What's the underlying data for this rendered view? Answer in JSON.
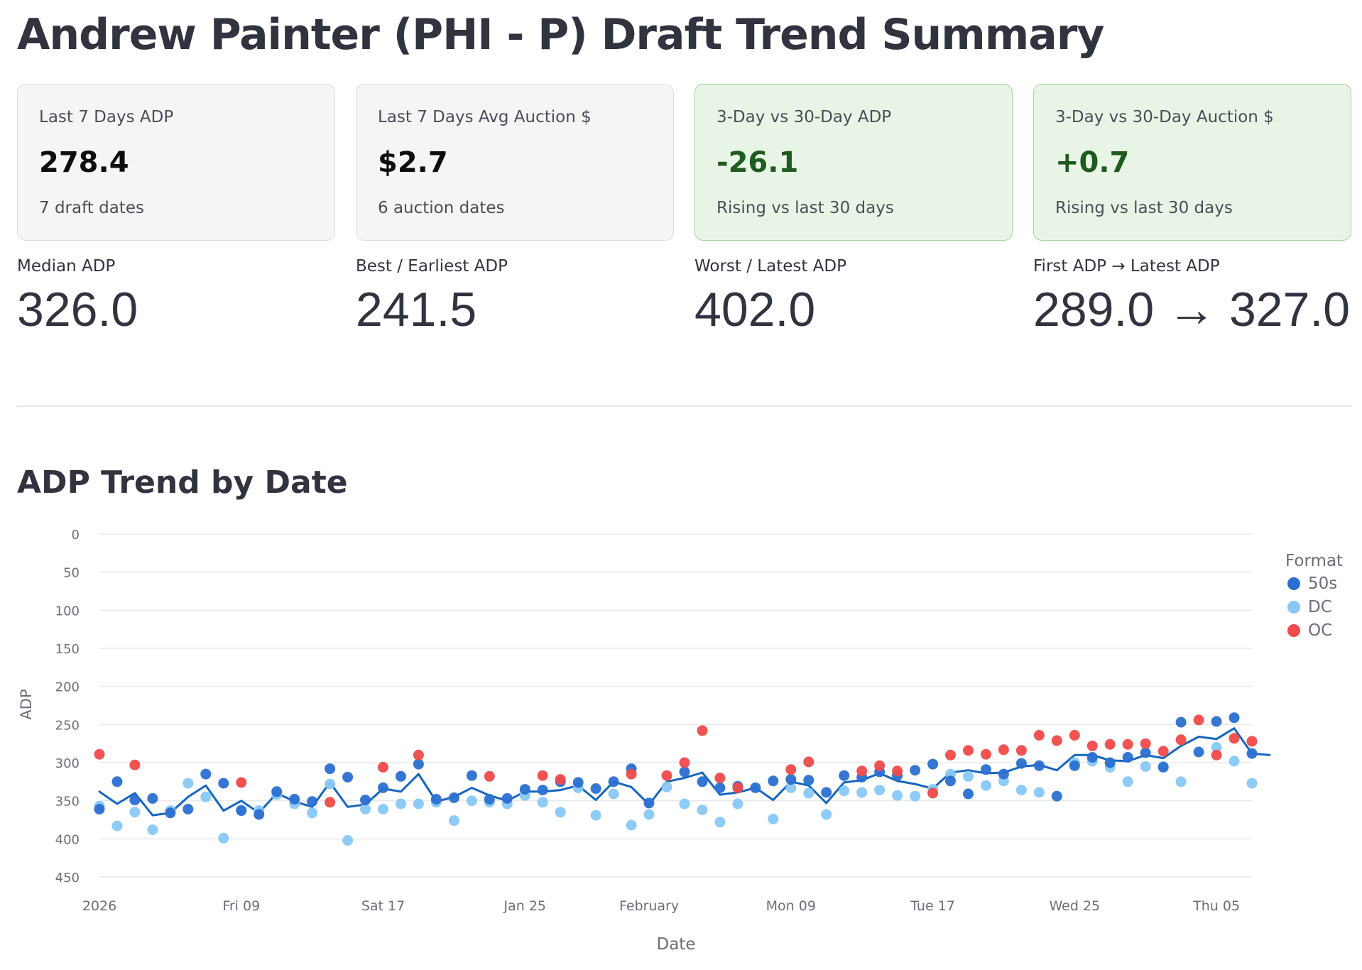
{
  "page": {
    "title": "Andrew Painter (PHI - P) Draft Trend Summary"
  },
  "cards": [
    {
      "label": "Last 7 Days ADP",
      "value": "278.4",
      "sub": "7 draft dates",
      "status": "neutral"
    },
    {
      "label": "Last 7 Days Avg Auction $",
      "value": "$2.7",
      "sub": "6 auction dates",
      "status": "neutral"
    },
    {
      "label": "3-Day vs 30-Day ADP",
      "value": "-26.1",
      "sub": "Rising vs last 30 days",
      "status": "positive"
    },
    {
      "label": "3-Day vs 30-Day Auction $",
      "value": "+0.7",
      "sub": "Rising vs last 30 days",
      "status": "positive"
    }
  ],
  "metrics": [
    {
      "label": "Median ADP",
      "value": "326.0"
    },
    {
      "label": "Best / Earliest ADP",
      "value": "241.5"
    },
    {
      "label": "Worst / Latest ADP",
      "value": "402.0"
    },
    {
      "label": "First ADP → Latest ADP",
      "value": "289.0 → 327.0"
    }
  ],
  "colors": {
    "card_positive_bg": "#e8f5e6",
    "card_positive_border": "#9fd49a",
    "positive_text": "#1f5a1f",
    "trend_line": "#1565c0"
  },
  "chart_data": {
    "type": "scatter",
    "title": "ADP Trend by Date",
    "xlabel": "Date",
    "ylabel": "ADP",
    "y_reversed": true,
    "ylim": [
      0,
      450
    ],
    "yticks": [
      0,
      50,
      100,
      150,
      200,
      250,
      300,
      350,
      400,
      450
    ],
    "xlim": [
      "2026-01-01",
      "2026-03-07"
    ],
    "xticks": [
      {
        "date": "2026-01-01",
        "label": "2026"
      },
      {
        "date": "2026-01-09",
        "label": "Fri 09"
      },
      {
        "date": "2026-01-17",
        "label": "Sat 17"
      },
      {
        "date": "2026-01-25",
        "label": "Jan 25"
      },
      {
        "date": "2026-02-01",
        "label": "February"
      },
      {
        "date": "2026-02-09",
        "label": "Mon 09"
      },
      {
        "date": "2026-02-17",
        "label": "Tue 17"
      },
      {
        "date": "2026-02-25",
        "label": "Wed 25"
      },
      {
        "date": "2026-03-05",
        "label": "Thu 05"
      }
    ],
    "grid": true,
    "legend": {
      "title": "Format",
      "position": "right"
    },
    "series": [
      {
        "name": "50s",
        "color": "#2a6fd1",
        "points": [
          [
            "2026-01-01",
            361
          ],
          [
            "2026-01-02",
            325
          ],
          [
            "2026-01-03",
            349
          ],
          [
            "2026-01-04",
            347
          ],
          [
            "2026-01-05",
            366
          ],
          [
            "2026-01-06",
            361
          ],
          [
            "2026-01-07",
            315
          ],
          [
            "2026-01-08",
            327
          ],
          [
            "2026-01-09",
            363
          ],
          [
            "2026-01-10",
            368
          ],
          [
            "2026-01-11",
            338
          ],
          [
            "2026-01-12",
            348
          ],
          [
            "2026-01-13",
            351
          ],
          [
            "2026-01-14",
            308
          ],
          [
            "2026-01-15",
            319
          ],
          [
            "2026-01-16",
            349
          ],
          [
            "2026-01-17",
            333
          ],
          [
            "2026-01-18",
            318
          ],
          [
            "2026-01-19",
            302
          ],
          [
            "2026-01-20",
            348
          ],
          [
            "2026-01-21",
            346
          ],
          [
            "2026-01-22",
            317
          ],
          [
            "2026-01-23",
            348
          ],
          [
            "2026-01-24",
            347
          ],
          [
            "2026-01-25",
            335
          ],
          [
            "2026-01-26",
            336
          ],
          [
            "2026-01-27",
            325
          ],
          [
            "2026-01-28",
            326
          ],
          [
            "2026-01-29",
            334
          ],
          [
            "2026-01-30",
            325
          ],
          [
            "2026-01-31",
            308
          ],
          [
            "2026-02-01",
            353
          ],
          [
            "2026-02-03",
            312
          ],
          [
            "2026-02-04",
            325
          ],
          [
            "2026-02-05",
            333
          ],
          [
            "2026-02-06",
            331
          ],
          [
            "2026-02-07",
            333
          ],
          [
            "2026-02-08",
            324
          ],
          [
            "2026-02-09",
            322
          ],
          [
            "2026-02-10",
            323
          ],
          [
            "2026-02-11",
            339
          ],
          [
            "2026-02-12",
            317
          ],
          [
            "2026-02-13",
            319
          ],
          [
            "2026-02-14",
            312
          ],
          [
            "2026-02-15",
            317
          ],
          [
            "2026-02-16",
            310
          ],
          [
            "2026-02-17",
            302
          ],
          [
            "2026-02-18",
            324
          ],
          [
            "2026-02-19",
            341
          ],
          [
            "2026-02-20",
            309
          ],
          [
            "2026-02-21",
            315
          ],
          [
            "2026-02-22",
            301
          ],
          [
            "2026-02-23",
            304
          ],
          [
            "2026-02-24",
            344
          ],
          [
            "2026-02-25",
            304
          ],
          [
            "2026-02-26",
            293
          ],
          [
            "2026-02-27",
            300
          ],
          [
            "2026-02-28",
            293
          ],
          [
            "2026-03-01",
            287
          ],
          [
            "2026-03-02",
            306
          ],
          [
            "2026-03-03",
            247
          ],
          [
            "2026-03-04",
            286
          ],
          [
            "2026-03-05",
            246
          ],
          [
            "2026-03-06",
            241
          ],
          [
            "2026-03-07",
            288
          ]
        ]
      },
      {
        "name": "DC",
        "color": "#88c8f7",
        "points": [
          [
            "2026-01-01",
            357
          ],
          [
            "2026-01-02",
            383
          ],
          [
            "2026-01-03",
            365
          ],
          [
            "2026-01-04",
            388
          ],
          [
            "2026-01-05",
            363
          ],
          [
            "2026-01-06",
            327
          ],
          [
            "2026-01-07",
            345
          ],
          [
            "2026-01-08",
            399
          ],
          [
            "2026-01-09",
            362
          ],
          [
            "2026-01-10",
            363
          ],
          [
            "2026-01-11",
            342
          ],
          [
            "2026-01-12",
            354
          ],
          [
            "2026-01-13",
            366
          ],
          [
            "2026-01-14",
            328
          ],
          [
            "2026-01-15",
            402
          ],
          [
            "2026-01-16",
            361
          ],
          [
            "2026-01-17",
            361
          ],
          [
            "2026-01-18",
            354
          ],
          [
            "2026-01-19",
            354
          ],
          [
            "2026-01-20",
            352
          ],
          [
            "2026-01-21",
            376
          ],
          [
            "2026-01-22",
            350
          ],
          [
            "2026-01-23",
            352
          ],
          [
            "2026-01-24",
            354
          ],
          [
            "2026-01-25",
            343
          ],
          [
            "2026-01-26",
            352
          ],
          [
            "2026-01-27",
            365
          ],
          [
            "2026-01-28",
            333
          ],
          [
            "2026-01-29",
            369
          ],
          [
            "2026-01-30",
            341
          ],
          [
            "2026-01-31",
            382
          ],
          [
            "2026-02-01",
            368
          ],
          [
            "2026-02-02",
            332
          ],
          [
            "2026-02-03",
            354
          ],
          [
            "2026-02-04",
            362
          ],
          [
            "2026-02-05",
            378
          ],
          [
            "2026-02-06",
            354
          ],
          [
            "2026-02-08",
            374
          ],
          [
            "2026-02-09",
            333
          ],
          [
            "2026-02-10",
            340
          ],
          [
            "2026-02-11",
            368
          ],
          [
            "2026-02-12",
            337
          ],
          [
            "2026-02-13",
            339
          ],
          [
            "2026-02-14",
            336
          ],
          [
            "2026-02-15",
            343
          ],
          [
            "2026-02-16",
            344
          ],
          [
            "2026-02-17",
            335
          ],
          [
            "2026-02-18",
            315
          ],
          [
            "2026-02-19",
            318
          ],
          [
            "2026-02-20",
            330
          ],
          [
            "2026-02-21",
            324
          ],
          [
            "2026-02-22",
            336
          ],
          [
            "2026-02-23",
            339
          ],
          [
            "2026-02-25",
            300
          ],
          [
            "2026-02-26",
            298
          ],
          [
            "2026-02-27",
            306
          ],
          [
            "2026-02-28",
            325
          ],
          [
            "2026-03-01",
            305
          ],
          [
            "2026-03-02",
            305
          ],
          [
            "2026-03-03",
            325
          ],
          [
            "2026-03-05",
            280
          ],
          [
            "2026-03-06",
            298
          ],
          [
            "2026-03-07",
            327
          ]
        ]
      },
      {
        "name": "OC",
        "color": "#f04a4a",
        "points": [
          [
            "2026-01-01",
            289
          ],
          [
            "2026-01-03",
            303
          ],
          [
            "2026-01-09",
            326
          ],
          [
            "2026-01-14",
            352
          ],
          [
            "2026-01-17",
            306
          ],
          [
            "2026-01-19",
            290
          ],
          [
            "2026-01-23",
            318
          ],
          [
            "2026-01-26",
            317
          ],
          [
            "2026-01-27",
            322
          ],
          [
            "2026-01-31",
            315
          ],
          [
            "2026-02-02",
            317
          ],
          [
            "2026-02-03",
            300
          ],
          [
            "2026-02-04",
            258
          ],
          [
            "2026-02-05",
            320
          ],
          [
            "2026-02-06",
            333
          ],
          [
            "2026-02-09",
            309
          ],
          [
            "2026-02-10",
            299
          ],
          [
            "2026-02-13",
            311
          ],
          [
            "2026-02-14",
            304
          ],
          [
            "2026-02-15",
            311
          ],
          [
            "2026-02-17",
            340
          ],
          [
            "2026-02-18",
            290
          ],
          [
            "2026-02-19",
            284
          ],
          [
            "2026-02-20",
            289
          ],
          [
            "2026-02-21",
            283
          ],
          [
            "2026-02-22",
            284
          ],
          [
            "2026-02-23",
            264
          ],
          [
            "2026-02-24",
            271
          ],
          [
            "2026-02-25",
            264
          ],
          [
            "2026-02-26",
            278
          ],
          [
            "2026-02-27",
            276
          ],
          [
            "2026-02-28",
            276
          ],
          [
            "2026-03-01",
            275
          ],
          [
            "2026-03-02",
            285
          ],
          [
            "2026-03-03",
            270
          ],
          [
            "2026-03-04",
            244
          ],
          [
            "2026-03-05",
            290
          ],
          [
            "2026-03-06",
            268
          ],
          [
            "2026-03-07",
            272
          ]
        ]
      }
    ],
    "trend_line": {
      "points": [
        [
          "2026-01-01",
          338
        ],
        [
          "2026-01-02",
          354
        ],
        [
          "2026-01-03",
          340
        ],
        [
          "2026-01-04",
          369
        ],
        [
          "2026-01-05",
          366
        ],
        [
          "2026-01-06",
          345
        ],
        [
          "2026-01-07",
          330
        ],
        [
          "2026-01-08",
          363
        ],
        [
          "2026-01-09",
          350
        ],
        [
          "2026-01-10",
          366
        ],
        [
          "2026-01-11",
          340
        ],
        [
          "2026-01-12",
          351
        ],
        [
          "2026-01-13",
          358
        ],
        [
          "2026-01-14",
          326
        ],
        [
          "2026-01-15",
          358
        ],
        [
          "2026-01-16",
          355
        ],
        [
          "2026-01-17",
          334
        ],
        [
          "2026-01-18",
          338
        ],
        [
          "2026-01-19",
          315
        ],
        [
          "2026-01-20",
          351
        ],
        [
          "2026-01-21",
          345
        ],
        [
          "2026-01-22",
          333
        ],
        [
          "2026-01-23",
          343
        ],
        [
          "2026-01-24",
          350
        ],
        [
          "2026-01-25",
          338
        ],
        [
          "2026-01-26",
          338
        ],
        [
          "2026-01-27",
          336
        ],
        [
          "2026-01-28",
          330
        ],
        [
          "2026-01-29",
          349
        ],
        [
          "2026-01-30",
          325
        ],
        [
          "2026-01-31",
          332
        ],
        [
          "2026-02-01",
          355
        ],
        [
          "2026-02-02",
          325
        ],
        [
          "2026-02-03",
          320
        ],
        [
          "2026-02-04",
          313
        ],
        [
          "2026-02-05",
          342
        ],
        [
          "2026-02-06",
          339
        ],
        [
          "2026-02-07",
          333
        ],
        [
          "2026-02-08",
          349
        ],
        [
          "2026-02-09",
          325
        ],
        [
          "2026-02-10",
          330
        ],
        [
          "2026-02-11",
          353
        ],
        [
          "2026-02-12",
          326
        ],
        [
          "2026-02-13",
          323
        ],
        [
          "2026-02-14",
          314
        ],
        [
          "2026-02-15",
          324
        ],
        [
          "2026-02-16",
          328
        ],
        [
          "2026-02-17",
          334
        ],
        [
          "2026-02-18",
          313
        ],
        [
          "2026-02-19",
          310
        ],
        [
          "2026-02-20",
          314
        ],
        [
          "2026-02-21",
          313
        ],
        [
          "2026-02-22",
          305
        ],
        [
          "2026-02-23",
          303
        ],
        [
          "2026-02-24",
          310
        ],
        [
          "2026-02-25",
          290
        ],
        [
          "2026-02-26",
          290
        ],
        [
          "2026-02-27",
          297
        ],
        [
          "2026-02-28",
          298
        ],
        [
          "2026-03-01",
          290
        ],
        [
          "2026-03-02",
          294
        ],
        [
          "2026-03-03",
          278
        ],
        [
          "2026-03-04",
          266
        ],
        [
          "2026-03-05",
          269
        ],
        [
          "2026-03-06",
          255
        ],
        [
          "2026-03-07",
          288
        ],
        [
          "2026-03-08",
          290
        ]
      ]
    }
  }
}
